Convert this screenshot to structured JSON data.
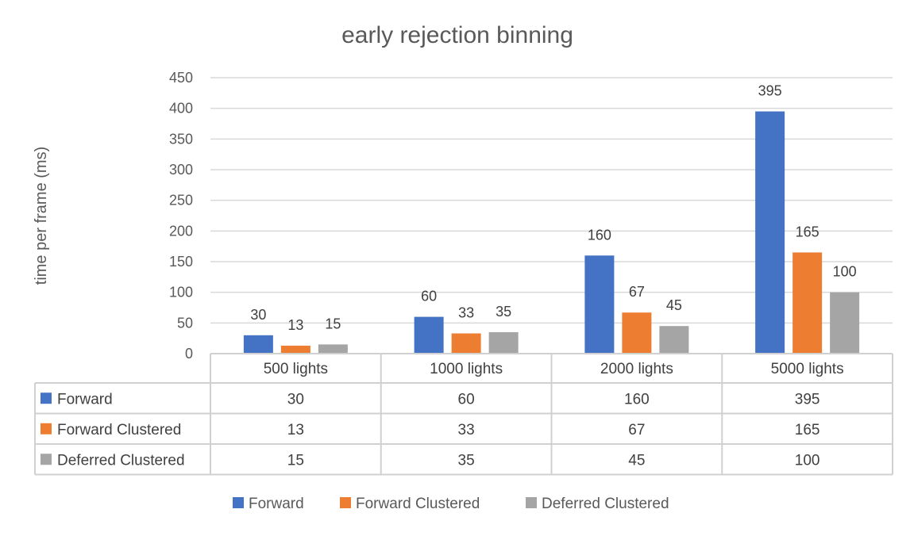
{
  "chart_data": {
    "type": "bar",
    "title": "early rejection binning",
    "xlabel": "",
    "ylabel": "time per frame (ms)",
    "ylim": [
      0,
      450
    ],
    "yticks": [
      0,
      50,
      100,
      150,
      200,
      250,
      300,
      350,
      400,
      450
    ],
    "categories": [
      "500 lights",
      "1000 lights",
      "2000 lights",
      "5000 lights"
    ],
    "series": [
      {
        "name": "Forward",
        "color": "#4472c4",
        "values": [
          30,
          60,
          160,
          395
        ]
      },
      {
        "name": "Forward Clustered",
        "color": "#ed7d31",
        "values": [
          13,
          33,
          67,
          165
        ]
      },
      {
        "name": "Deferred Clustered",
        "color": "#a5a5a5",
        "values": [
          15,
          35,
          45,
          100
        ]
      }
    ],
    "grid": true,
    "legend_position": "bottom",
    "data_table": true
  }
}
